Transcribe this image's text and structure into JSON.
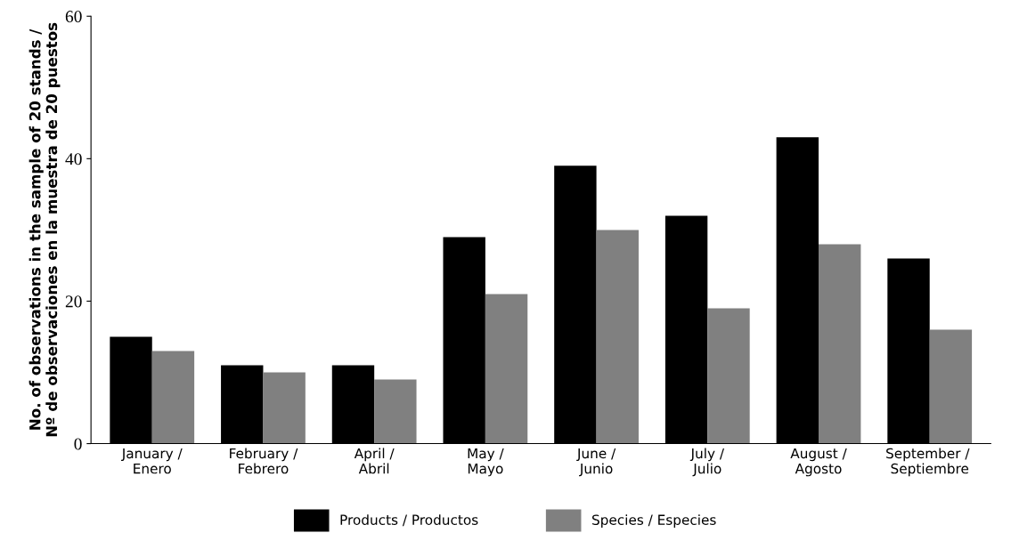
{
  "chart_data": {
    "type": "bar",
    "ylabel": "No. of observations in the sample of 20 stands /\nNº de observaciones en la muestra de 20 puestos",
    "categories": [
      "January /\nEnero",
      "February /\nFebrero",
      "April /\nAbril",
      "May /\nMayo",
      "June /\nJunio",
      "July /\nJulio",
      "August /\nAgosto",
      "September / \nSeptiembre"
    ],
    "series": [
      {
        "name": "Products / Productos",
        "color": "#000000",
        "values": [
          15,
          11,
          11,
          29,
          39,
          32,
          43,
          26
        ]
      },
      {
        "name": "Species / Especies",
        "color": "#808080",
        "values": [
          13,
          10,
          9,
          21,
          30,
          19,
          28,
          16
        ]
      }
    ],
    "ylim": [
      0,
      60
    ],
    "yticks": [
      0,
      20,
      40,
      60
    ],
    "grid": false,
    "legend": "bottom"
  }
}
